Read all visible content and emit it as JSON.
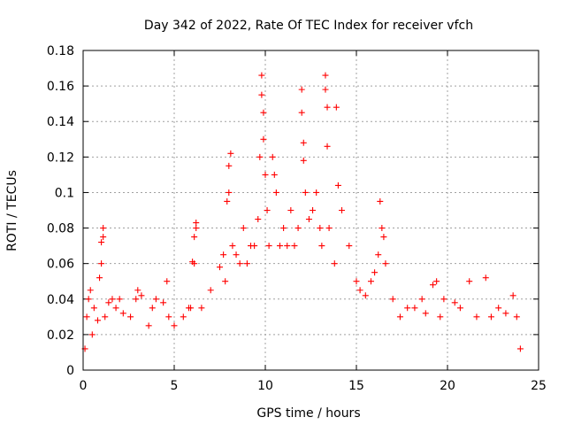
{
  "chart_data": {
    "type": "scatter",
    "title": "Day 342 of 2022, Rate Of TEC Index for receiver vfch",
    "xlabel": "GPS time / hours",
    "ylabel": "ROTI / TECUs",
    "xlim": [
      0,
      25
    ],
    "ylim": [
      0,
      0.18
    ],
    "xticks": [
      "0",
      "5",
      "10",
      "15",
      "20",
      "25"
    ],
    "yticks": [
      "0",
      "0.02",
      "0.04",
      "0.06",
      "0.08",
      "0.1",
      "0.12",
      "0.14",
      "0.16",
      "0.18"
    ],
    "grid": true,
    "marker": "+",
    "color": "#ff0000",
    "series": [
      {
        "points": [
          [
            0.1,
            0.012
          ],
          [
            0.2,
            0.03
          ],
          [
            0.3,
            0.04
          ],
          [
            0.4,
            0.045
          ],
          [
            0.5,
            0.02
          ],
          [
            0.6,
            0.035
          ],
          [
            0.8,
            0.028
          ],
          [
            0.9,
            0.052
          ],
          [
            1.0,
            0.06
          ],
          [
            1.0,
            0.072
          ],
          [
            1.1,
            0.08
          ],
          [
            1.1,
            0.075
          ],
          [
            1.2,
            0.03
          ],
          [
            1.4,
            0.038
          ],
          [
            1.6,
            0.04
          ],
          [
            1.8,
            0.035
          ],
          [
            2.0,
            0.04
          ],
          [
            2.2,
            0.032
          ],
          [
            2.6,
            0.03
          ],
          [
            2.9,
            0.04
          ],
          [
            3.0,
            0.045
          ],
          [
            3.2,
            0.042
          ],
          [
            3.6,
            0.025
          ],
          [
            3.8,
            0.035
          ],
          [
            4.0,
            0.04
          ],
          [
            4.4,
            0.038
          ],
          [
            4.6,
            0.05
          ],
          [
            4.7,
            0.03
          ],
          [
            5.0,
            0.025
          ],
          [
            5.5,
            0.03
          ],
          [
            5.8,
            0.035
          ],
          [
            5.9,
            0.035
          ],
          [
            6.0,
            0.061
          ],
          [
            6.1,
            0.06
          ],
          [
            6.1,
            0.075
          ],
          [
            6.2,
            0.08
          ],
          [
            6.2,
            0.083
          ],
          [
            6.5,
            0.035
          ],
          [
            7.0,
            0.045
          ],
          [
            7.5,
            0.058
          ],
          [
            7.7,
            0.065
          ],
          [
            7.8,
            0.05
          ],
          [
            7.9,
            0.095
          ],
          [
            8.0,
            0.1
          ],
          [
            8.0,
            0.115
          ],
          [
            8.1,
            0.122
          ],
          [
            8.2,
            0.07
          ],
          [
            8.4,
            0.065
          ],
          [
            8.6,
            0.06
          ],
          [
            8.8,
            0.08
          ],
          [
            9.0,
            0.06
          ],
          [
            9.2,
            0.07
          ],
          [
            9.4,
            0.07
          ],
          [
            9.6,
            0.085
          ],
          [
            9.7,
            0.12
          ],
          [
            9.8,
            0.155
          ],
          [
            9.8,
            0.166
          ],
          [
            9.9,
            0.145
          ],
          [
            9.9,
            0.13
          ],
          [
            10.0,
            0.11
          ],
          [
            10.1,
            0.09
          ],
          [
            10.2,
            0.07
          ],
          [
            10.4,
            0.12
          ],
          [
            10.5,
            0.11
          ],
          [
            10.6,
            0.1
          ],
          [
            10.8,
            0.07
          ],
          [
            11.0,
            0.08
          ],
          [
            11.2,
            0.07
          ],
          [
            11.4,
            0.09
          ],
          [
            11.6,
            0.07
          ],
          [
            11.8,
            0.08
          ],
          [
            12.0,
            0.158
          ],
          [
            12.0,
            0.145
          ],
          [
            12.1,
            0.128
          ],
          [
            12.1,
            0.118
          ],
          [
            12.2,
            0.1
          ],
          [
            12.4,
            0.085
          ],
          [
            12.6,
            0.09
          ],
          [
            12.8,
            0.1
          ],
          [
            13.0,
            0.08
          ],
          [
            13.1,
            0.07
          ],
          [
            13.3,
            0.166
          ],
          [
            13.3,
            0.158
          ],
          [
            13.4,
            0.148
          ],
          [
            13.4,
            0.126
          ],
          [
            13.5,
            0.08
          ],
          [
            13.8,
            0.06
          ],
          [
            13.9,
            0.148
          ],
          [
            14.0,
            0.104
          ],
          [
            14.2,
            0.09
          ],
          [
            14.6,
            0.07
          ],
          [
            15.0,
            0.05
          ],
          [
            15.2,
            0.045
          ],
          [
            15.5,
            0.042
          ],
          [
            15.8,
            0.05
          ],
          [
            16.0,
            0.055
          ],
          [
            16.2,
            0.065
          ],
          [
            16.3,
            0.095
          ],
          [
            16.4,
            0.08
          ],
          [
            16.5,
            0.075
          ],
          [
            16.6,
            0.06
          ],
          [
            17.0,
            0.04
          ],
          [
            17.4,
            0.03
          ],
          [
            17.8,
            0.035
          ],
          [
            18.2,
            0.035
          ],
          [
            18.6,
            0.04
          ],
          [
            18.8,
            0.032
          ],
          [
            19.2,
            0.048
          ],
          [
            19.4,
            0.05
          ],
          [
            19.6,
            0.03
          ],
          [
            19.8,
            0.04
          ],
          [
            20.4,
            0.038
          ],
          [
            20.7,
            0.035
          ],
          [
            21.2,
            0.05
          ],
          [
            21.6,
            0.03
          ],
          [
            22.1,
            0.052
          ],
          [
            22.4,
            0.03
          ],
          [
            22.8,
            0.035
          ],
          [
            23.2,
            0.032
          ],
          [
            23.6,
            0.042
          ],
          [
            23.8,
            0.03
          ],
          [
            24.0,
            0.012
          ]
        ]
      }
    ]
  }
}
